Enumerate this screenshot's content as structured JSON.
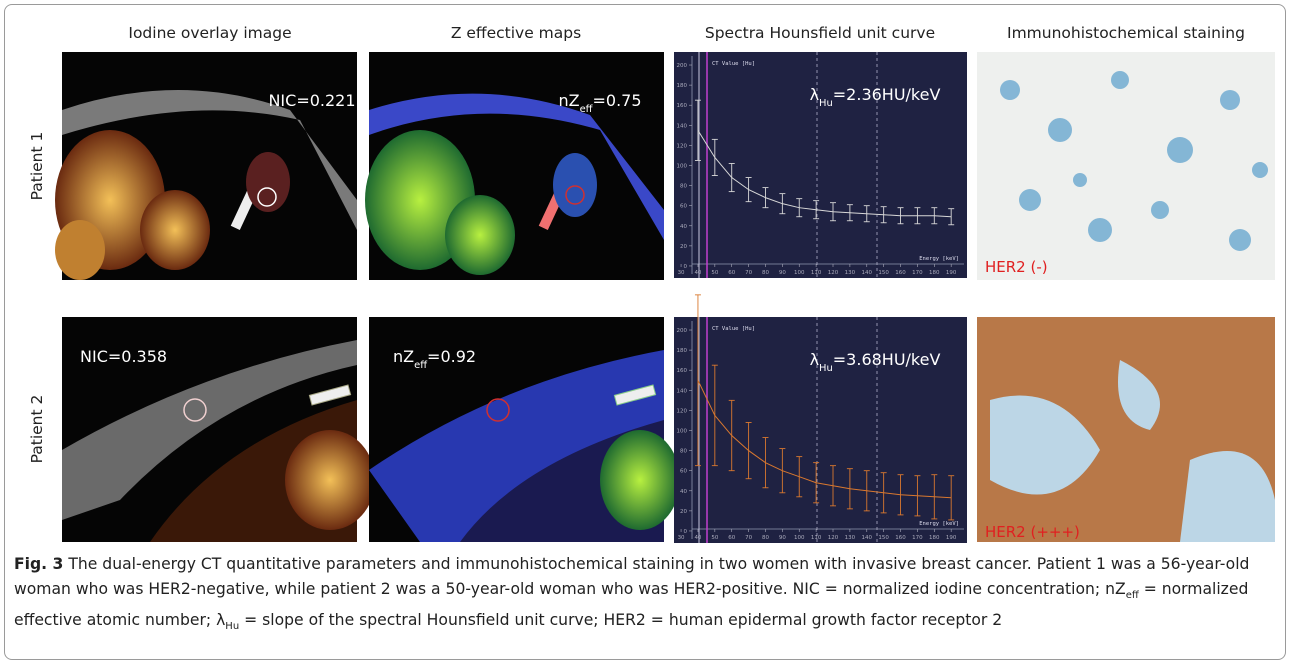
{
  "column_headers": [
    "Iodine overlay image",
    "Z effective maps",
    "Spectra Hounsfield unit curve",
    "Immunohistochemical staining"
  ],
  "row_labels": [
    "Patient 1",
    "Patient 2"
  ],
  "rows": [
    {
      "nic": "NIC=0.221",
      "nzeff": [
        "nZ",
        "eff",
        "=0.75"
      ],
      "her2": "HER2 (-)"
    },
    {
      "nic": "NIC=0.358",
      "nzeff": [
        "nZ",
        "eff",
        "=0.92"
      ],
      "her2": "HER2 (+++)"
    }
  ],
  "chart_data": [
    {
      "type": "line",
      "y_label": "CT Value [Hu]",
      "x_label": "Energy [keV]",
      "annotation": [
        "λ",
        "Hu",
        "=2.36HU/keV"
      ],
      "x": [
        40,
        50,
        60,
        70,
        80,
        90,
        100,
        110,
        120,
        130,
        140,
        150,
        160,
        170,
        180,
        190
      ],
      "series": [
        {
          "color": "#d8d8d8",
          "values": [
            135,
            108,
            88,
            76,
            68,
            62,
            58,
            56,
            54,
            53,
            52,
            51,
            50,
            50,
            50,
            49
          ],
          "errors": [
            30,
            18,
            14,
            12,
            10,
            10,
            9,
            9,
            9,
            8,
            8,
            8,
            8,
            8,
            8,
            8
          ]
        }
      ],
      "xlim": [
        27,
        197
      ],
      "ylim": [
        -8,
        205
      ],
      "xticks": [
        30,
        40,
        50,
        60,
        70,
        80,
        90,
        100,
        110,
        120,
        130,
        140,
        150,
        160,
        170,
        180,
        190
      ],
      "yticks": [
        0,
        20,
        40,
        60,
        80,
        100,
        120,
        140,
        160,
        180,
        200
      ]
    },
    {
      "type": "line",
      "y_label": "CT Value [Hu]",
      "x_label": "Energy [keV]",
      "annotation": [
        "λ",
        "Hu",
        "=3.68HU/keV"
      ],
      "x": [
        40,
        50,
        60,
        70,
        80,
        90,
        100,
        110,
        120,
        130,
        140,
        150,
        160,
        170,
        180,
        190
      ],
      "series": [
        {
          "color": "#d9782f",
          "values": [
            150,
            115,
            95,
            80,
            68,
            60,
            54,
            48,
            45,
            42,
            40,
            38,
            36,
            35,
            34,
            33
          ],
          "errors": [
            85,
            50,
            35,
            28,
            25,
            22,
            20,
            20,
            20,
            20,
            20,
            20,
            20,
            20,
            22,
            22
          ]
        }
      ],
      "xlim": [
        27,
        197
      ],
      "ylim": [
        -8,
        205
      ],
      "xticks": [
        30,
        40,
        50,
        60,
        70,
        80,
        90,
        100,
        110,
        120,
        130,
        140,
        150,
        160,
        170,
        180,
        190
      ],
      "yticks": [
        0,
        20,
        40,
        60,
        80,
        100,
        120,
        140,
        160,
        180,
        200
      ]
    }
  ],
  "caption": {
    "label": "Fig. 3",
    "parts": [
      " The dual-energy CT quantitative parameters and immunohistochemical staining in two women with invasive breast cancer. Patient 1 was a 56-year-old woman who was HER2-negative, while patient 2 was a 50-year-old woman who was HER2-positive. NIC = normalized iodine concentration; nZ",
      "eff",
      " = normalized effective atomic number; λ",
      "Hu",
      " = slope of the spectral Hounsfield unit curve; HER2 = human epidermal growth factor receptor 2"
    ]
  }
}
